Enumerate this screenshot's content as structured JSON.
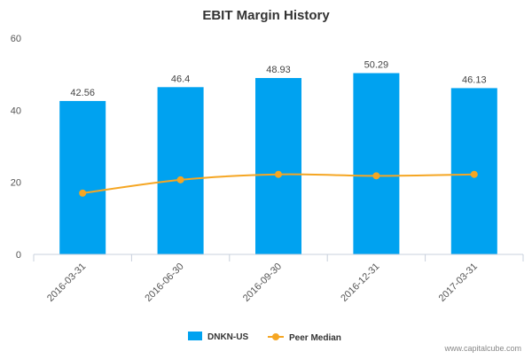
{
  "chart_data": {
    "type": "bar",
    "title": "EBIT Margin History",
    "xlabel": "",
    "ylabel": "",
    "ylim": [
      0,
      60
    ],
    "yticks": [
      0,
      20,
      40,
      60
    ],
    "grid": false,
    "legend_position": "bottom",
    "categories": [
      "2016-03-31",
      "2016-06-30",
      "2016-09-30",
      "2016-12-31",
      "2017-03-31"
    ],
    "series": [
      {
        "name": "DNKN-US",
        "kind": "bar",
        "color": "#00a2f0",
        "values": [
          42.56,
          46.4,
          48.93,
          50.29,
          46.13
        ],
        "data_labels": [
          "42.56",
          "46.4",
          "48.93",
          "50.29",
          "46.13"
        ]
      },
      {
        "name": "Peer Median",
        "kind": "line",
        "color": "#f5a623",
        "values": [
          17,
          20.7,
          22.2,
          21.8,
          22.2
        ]
      }
    ]
  },
  "footer": {
    "credit": "www.capitalcube.com"
  }
}
